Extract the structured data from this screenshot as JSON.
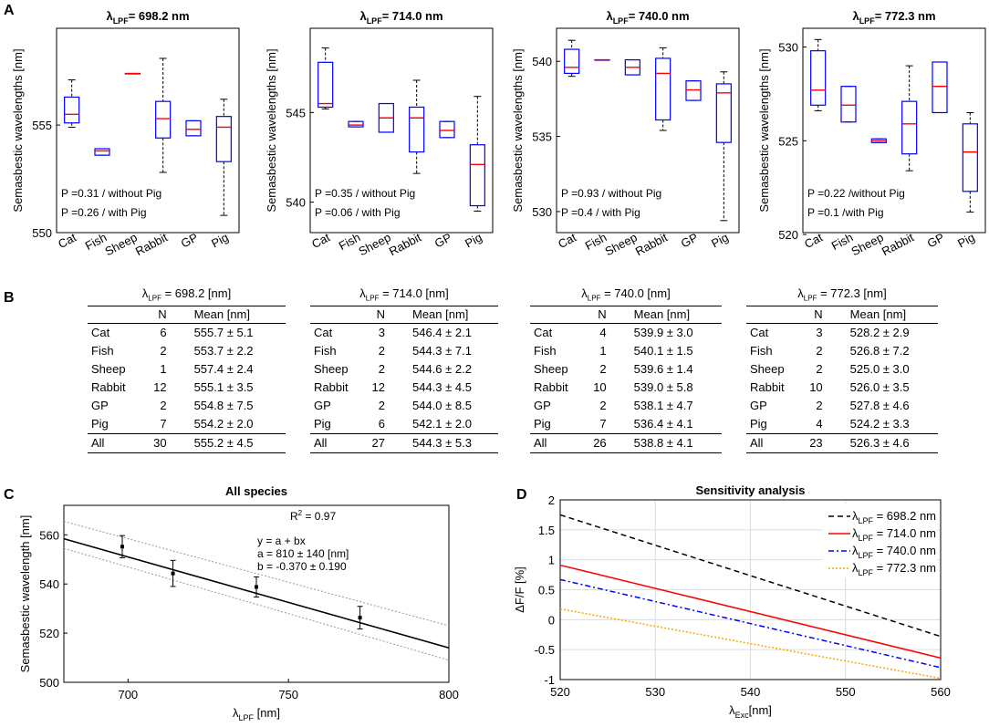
{
  "panel_letters": {
    "a": "A",
    "b": "B",
    "c": "C",
    "d": "D"
  },
  "lpf_symbol": "λ",
  "lpf_sub": "LPF",
  "box_ylabel": "Semasbestic wavelengths [nm]",
  "chart_data": [
    {
      "type": "box",
      "title_value": "= 698.2 nm",
      "categories": [
        "Cat",
        "Fish",
        "Sheep",
        "Rabbit",
        "GP",
        "Pig"
      ],
      "ylim": [
        550,
        559.5
      ],
      "yticks": [
        550,
        555
      ],
      "boxes": [
        {
          "min": 554.9,
          "q1": 555.1,
          "median": 555.5,
          "q3": 556.3,
          "max": 557.1
        },
        {
          "min": 553.6,
          "q1": 553.6,
          "median": 553.8,
          "q3": 553.9,
          "max": 553.9
        },
        {
          "min": 557.4,
          "q1": 557.4,
          "median": 557.4,
          "q3": 557.4,
          "max": 557.4
        },
        {
          "min": 552.8,
          "q1": 554.4,
          "median": 555.3,
          "q3": 556.1,
          "max": 558.1
        },
        {
          "min": 554.5,
          "q1": 554.5,
          "median": 554.8,
          "q3": 555.2,
          "max": 555.2
        },
        {
          "min": 550.8,
          "q1": 553.3,
          "median": 554.9,
          "q3": 555.4,
          "max": 556.2
        }
      ],
      "p_lines": [
        "P =0.31 / without Pig",
        "P =0.26 / with Pig"
      ]
    },
    {
      "type": "box",
      "title_value": "= 714.0 nm",
      "categories": [
        "Cat",
        "Fish",
        "Sheep",
        "Rabbit",
        "GP",
        "Pig"
      ],
      "ylim": [
        538.3,
        549.7
      ],
      "yticks": [
        540,
        545
      ],
      "boxes": [
        {
          "min": 545.2,
          "q1": 545.3,
          "median": 545.5,
          "q3": 547.8,
          "max": 548.6
        },
        {
          "min": 544.2,
          "q1": 544.2,
          "median": 544.3,
          "q3": 544.5,
          "max": 544.5
        },
        {
          "min": 543.9,
          "q1": 543.9,
          "median": 544.7,
          "q3": 545.5,
          "max": 545.5
        },
        {
          "min": 541.6,
          "q1": 542.8,
          "median": 544.7,
          "q3": 545.3,
          "max": 546.8
        },
        {
          "min": 543.6,
          "q1": 543.6,
          "median": 544.0,
          "q3": 544.5,
          "max": 544.5
        },
        {
          "min": 539.5,
          "q1": 539.8,
          "median": 542.1,
          "q3": 543.2,
          "max": 545.9
        }
      ],
      "p_lines": [
        "P =0.35 / without Pig",
        "P =0.06 / with Pig"
      ]
    },
    {
      "type": "box",
      "title_value": "= 740.0 nm",
      "categories": [
        "Cat",
        "Fish",
        "Sheep",
        "Rabbit",
        "GP",
        "Pig"
      ],
      "ylim": [
        528.6,
        542.2
      ],
      "yticks": [
        530,
        535,
        540
      ],
      "boxes": [
        {
          "min": 539.0,
          "q1": 539.2,
          "median": 539.6,
          "q3": 540.8,
          "max": 541.4
        },
        {
          "min": 540.1,
          "q1": 540.1,
          "median": 540.1,
          "q3": 540.1,
          "max": 540.1
        },
        {
          "min": 539.1,
          "q1": 539.1,
          "median": 539.6,
          "q3": 540.1,
          "max": 540.1
        },
        {
          "min": 535.4,
          "q1": 536.1,
          "median": 539.2,
          "q3": 540.2,
          "max": 540.9
        },
        {
          "min": 537.4,
          "q1": 537.4,
          "median": 538.1,
          "q3": 538.7,
          "max": 538.7
        },
        {
          "min": 529.4,
          "q1": 534.6,
          "median": 537.9,
          "q3": 538.5,
          "max": 539.3
        }
      ],
      "p_lines": [
        "P =0.93 / without Pig",
        "P =0.4 / with Pig"
      ]
    },
    {
      "type": "box",
      "title_value": "= 772.3 nm",
      "categories": [
        "Cat",
        "Fish",
        "Sheep",
        "Rabbit",
        "GP",
        "Pig"
      ],
      "ylim": [
        520.1,
        531.0
      ],
      "yticks": [
        520,
        525,
        530
      ],
      "boxes": [
        {
          "min": 526.6,
          "q1": 526.9,
          "median": 527.7,
          "q3": 529.8,
          "max": 530.4
        },
        {
          "min": 526.0,
          "q1": 526.0,
          "median": 526.9,
          "q3": 527.9,
          "max": 527.9
        },
        {
          "min": 524.9,
          "q1": 524.9,
          "median": 525.0,
          "q3": 525.1,
          "max": 525.1
        },
        {
          "min": 523.4,
          "q1": 524.3,
          "median": 525.9,
          "q3": 527.1,
          "max": 529.0
        },
        {
          "min": 526.5,
          "q1": 526.5,
          "median": 527.9,
          "q3": 529.2,
          "max": 529.2
        },
        {
          "min": 521.2,
          "q1": 522.3,
          "median": 524.4,
          "q3": 525.9,
          "max": 526.5
        }
      ],
      "p_lines": [
        "P =0.22 /without Pig",
        "P =0.1 /with Pig"
      ]
    },
    {
      "type": "scatter_regression",
      "title": "All species",
      "xlabel_sub": "LPF",
      "xlabel_tail": "[nm]",
      "ylabel": "Semasbestic wavelength [nm]",
      "xlim": [
        680,
        800
      ],
      "ylim": [
        500,
        572
      ],
      "xticks": [
        700,
        750,
        800
      ],
      "yticks": [
        500,
        520,
        540,
        560
      ],
      "points": [
        {
          "x": 698.2,
          "y": 555.2,
          "err": 4.5
        },
        {
          "x": 714.0,
          "y": 544.3,
          "err": 5.3
        },
        {
          "x": 740.0,
          "y": 538.8,
          "err": 4.1
        },
        {
          "x": 772.3,
          "y": 526.3,
          "err": 4.6
        }
      ],
      "fit": {
        "a": 810,
        "b": -0.37
      },
      "ci_band": {
        "x": [
          680,
          800
        ],
        "upper": [
          565.5,
          523.0
        ],
        "lower": [
          554.5,
          509.0
        ]
      },
      "r2_label": "R",
      "r2_exp": "2",
      "r2_value": " = 0.97",
      "eq_lines": [
        "y = a + bx",
        "a = 810 ± 140 [nm]",
        "b = -0.370 ± 0.190"
      ]
    },
    {
      "type": "line",
      "title": "Sensitivity analysis",
      "xlabel_sub": "Exc",
      "xlabel_tail": "[nm]",
      "ylabel": "ΔF/F [%]",
      "xlim": [
        520,
        560
      ],
      "ylim": [
        -1,
        2
      ],
      "xticks": [
        520,
        530,
        540,
        550,
        560
      ],
      "yticks": [
        -1,
        -0.5,
        0,
        0.5,
        1,
        1.5,
        2
      ],
      "ytick_labels": [
        "-1",
        "-0.5",
        "0",
        "0.5",
        "1",
        "1.5",
        "2"
      ],
      "series": [
        {
          "value": " = 698.2 nm",
          "x": [
            520,
            560
          ],
          "y": [
            1.75,
            -0.28
          ],
          "color": "#000000",
          "dash": "6,4"
        },
        {
          "value": " = 714.0 nm",
          "x": [
            520,
            560
          ],
          "y": [
            0.91,
            -0.64
          ],
          "color": "#ff0000",
          "dash": ""
        },
        {
          "value": " = 740.0 nm",
          "x": [
            520,
            560
          ],
          "y": [
            0.67,
            -0.8
          ],
          "color": "#0000ff",
          "dash": "6,3,2,3"
        },
        {
          "value": " = 772.3 nm",
          "x": [
            520,
            560
          ],
          "y": [
            0.18,
            -0.98
          ],
          "color": "#ffa500",
          "dash": "2,2"
        }
      ]
    }
  ],
  "tables": [
    {
      "lpf_value": " = 698.2 [nm]",
      "headers": [
        "",
        "N",
        "Mean [nm]"
      ],
      "rows": [
        [
          "Cat",
          "6",
          "555.7 ± 5.1"
        ],
        [
          "Fish",
          "2",
          "553.7 ± 2.2"
        ],
        [
          "Sheep",
          "1",
          "557.4 ± 2.4"
        ],
        [
          "Rabbit",
          "12",
          "555.1 ± 3.5"
        ],
        [
          "GP",
          "2",
          "554.8 ± 7.5"
        ],
        [
          "Pig",
          "7",
          "554.2 ± 2.0"
        ]
      ],
      "all": [
        "All",
        "30",
        "555.2 ± 4.5"
      ]
    },
    {
      "lpf_value": " = 714.0 [nm]",
      "headers": [
        "",
        "N",
        "Mean [nm]"
      ],
      "rows": [
        [
          "Cat",
          "3",
          "546.4 ± 2.1"
        ],
        [
          "Fish",
          "2",
          "544.3 ± 7.1"
        ],
        [
          "Sheep",
          "2",
          "544.6 ± 2.2"
        ],
        [
          "Rabbit",
          "12",
          "544.3 ± 4.5"
        ],
        [
          "GP",
          "2",
          "544.0 ± 8.5"
        ],
        [
          "Pig",
          "6",
          "542.1 ± 2.0"
        ]
      ],
      "all": [
        "All",
        "27",
        "544.3 ± 5.3"
      ]
    },
    {
      "lpf_value": " = 740.0 [nm]",
      "headers": [
        "",
        "N",
        "Mean [nm]"
      ],
      "rows": [
        [
          "Cat",
          "4",
          "539.9 ± 3.0"
        ],
        [
          "Fish",
          "1",
          "540.1 ± 1.5"
        ],
        [
          "Sheep",
          "2",
          "539.6 ± 1.4"
        ],
        [
          "Rabbit",
          "10",
          "539.0 ± 5.8"
        ],
        [
          "GP",
          "2",
          "538.1 ± 4.7"
        ],
        [
          "Pig",
          "7",
          "536.4 ± 4.1"
        ]
      ],
      "all": [
        "All",
        "26",
        "538.8 ± 4.1"
      ]
    },
    {
      "lpf_value": " = 772.3 [nm]",
      "headers": [
        "",
        "N",
        "Mean [nm]"
      ],
      "rows": [
        [
          "Cat",
          "3",
          "528.2 ± 2.9"
        ],
        [
          "Fish",
          "2",
          "526.8 ± 7.2"
        ],
        [
          "Sheep",
          "2",
          "525.0 ± 3.0"
        ],
        [
          "Rabbit",
          "10",
          "526.0 ± 3.5"
        ],
        [
          "GP",
          "2",
          "527.8 ± 4.6"
        ],
        [
          "Pig",
          "4",
          "524.2 ± 3.3"
        ]
      ],
      "all": [
        "All",
        "23",
        "526.3 ± 4.6"
      ]
    }
  ]
}
